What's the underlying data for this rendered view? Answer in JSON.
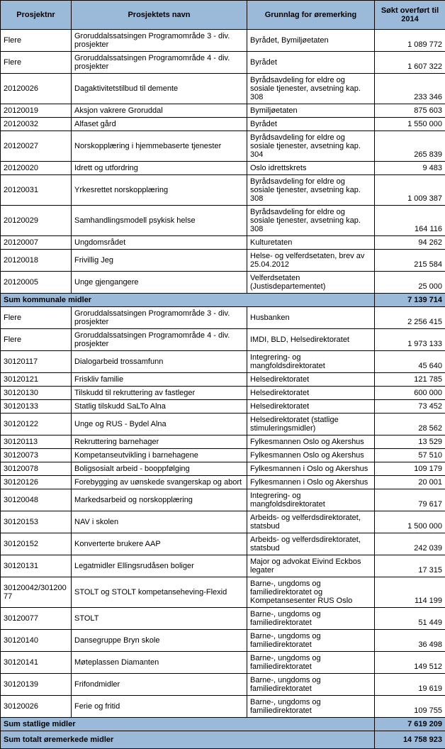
{
  "headers": {
    "col1": "Prosjektnr",
    "col2": "Prosjektets navn",
    "col3": "Grunnlag for øremerking",
    "col4": "Søkt overført til 2014"
  },
  "section1": {
    "rows": [
      {
        "nr": "Flere",
        "name": "Groruddalssatsingen Programområde 3 - div. prosjekter",
        "grunn": "Byrådet, Bymiljøetaten",
        "amt": "1 089 772"
      },
      {
        "nr": "Flere",
        "name": "Groruddalssatsingen Programområde 4 - div. prosjekter",
        "grunn": "Byrådet",
        "amt": "1 607 322"
      },
      {
        "nr": "20120026",
        "name": "Dagaktivitetstilbud til demente",
        "grunn": "Byrådsavdeling for eldre og sosiale tjenester, avsetning kap. 308",
        "amt": "233 346"
      },
      {
        "nr": "20120019",
        "name": "Aksjon vakrere Groruddal",
        "grunn": "Bymiljøetaten",
        "amt": "875 603"
      },
      {
        "nr": "20120032",
        "name": "Alfaset gård",
        "grunn": "Byrådet",
        "amt": "1 550 000"
      },
      {
        "nr": "20120027",
        "name": "Norskopplæring i hjemmebaserte tjenester",
        "grunn": "Byrådsavdeling for eldre og sosiale tjenester, avsetning kap. 304",
        "amt": "265 839"
      },
      {
        "nr": "20120020",
        "name": "Idrett og utfordring",
        "grunn": "Oslo idrettskrets",
        "amt": "9 483"
      },
      {
        "nr": "20120031",
        "name": "Yrkesrettet norskopplæring",
        "grunn": "Byrådsavdeling for eldre og sosiale tjenester, avsetning kap. 308",
        "amt": "1 009 387"
      },
      {
        "nr": "20120029",
        "name": "Samhandlingsmodell psykisk helse",
        "grunn": "Byrådsavdeling for eldre og sosiale tjenester, avsetning kap. 308",
        "amt": "164 116"
      },
      {
        "nr": "20120007",
        "name": "Ungdomsrådet",
        "grunn": "Kulturetaten",
        "amt": "94 262"
      },
      {
        "nr": "20120018",
        "name": "Frivillig Jeg",
        "grunn": "Helse- og velferdsetaten, brev av 25.04.2012",
        "amt": "215 584"
      },
      {
        "nr": "20120005",
        "name": "Unge gjengangere",
        "grunn": "Velferdsetaten (Justisdepartementet)",
        "amt": "25 000"
      }
    ],
    "sum_label": "Sum kommunale midler",
    "sum_amt": "7 139 714"
  },
  "section2": {
    "rows": [
      {
        "nr": "Flere",
        "name": "Groruddalssatsingen Programområde 3 - div. prosjekter",
        "grunn": "Husbanken",
        "amt": "2 256 415"
      },
      {
        "nr": "Flere",
        "name": "Groruddalssatsingen Programområde 4 - div. prosjekter",
        "grunn": "IMDI, BLD, Helsedirektoratet",
        "amt": "1 973 133"
      },
      {
        "nr": "30120117",
        "name": "Dialogarbeid trossamfunn",
        "grunn": "Integrering- og mangfoldsdirektoratet",
        "amt": "45 640"
      },
      {
        "nr": "30120121",
        "name": "Friskliv familie",
        "grunn": "Helsedirektoratet",
        "amt": "121 785"
      },
      {
        "nr": "30120130",
        "name": "Tilskudd til rekruttering av fastleger",
        "grunn": "Helsedirektoratet",
        "amt": "600 000"
      },
      {
        "nr": "30120133",
        "name": "Statlig tilskudd SaLTo Alna",
        "grunn": "Helsedirektoratet",
        "amt": "73 452"
      },
      {
        "nr": "30120122",
        "name": "Unge og RUS - Bydel Alna",
        "grunn": "Helsedirektoratet (statlige stimuleringsmidler)",
        "amt": "28 562"
      },
      {
        "nr": "30120113",
        "name": "Rekruttering barnehager",
        "grunn": "Fylkesmannen Oslo og Akershus",
        "amt": "13 529"
      },
      {
        "nr": "30120073",
        "name": "Kompetanseutvikling i barnehagene",
        "grunn": "Fylkesmannen Oslo og Akershus",
        "amt": "57 510"
      },
      {
        "nr": "30120078",
        "name": "Boligsosialt arbeid - booppfølging",
        "grunn": "Fylkesmannen i Oslo og Akershus",
        "amt": "109 179"
      },
      {
        "nr": "30120126",
        "name": "Forebygging av uønskede svangerskap og abort",
        "grunn": "Fylkesmannen i Oslo og Akershus",
        "amt": "20 001"
      },
      {
        "nr": "30120048",
        "name": "Markedsarbeid og norskopplæring",
        "grunn": "Integrering- og mangfoldsdirektoratet",
        "amt": "79 617"
      },
      {
        "nr": "30120153",
        "name": "NAV i skolen",
        "grunn": "Arbeids- og velferdsdirektoratet, statsbud",
        "amt": "1 500 000"
      },
      {
        "nr": "30120152",
        "name": "Konverterte brukere AAP",
        "grunn": "Arbeids- og velferdsdirektoratet, statsbud",
        "amt": "242 039"
      },
      {
        "nr": "30120131",
        "name": "Legatmidler Ellingsrudåsen boliger",
        "grunn": "Major og advokat Eivind Eckbos legater",
        "amt": "17 315"
      },
      {
        "nr": "30120042/30120077",
        "name": "STOLT og STOLT kompetanseheving-Flexid",
        "grunn": "Barne-, ungdoms og familiedirektoratet og Kompetansesenter RUS Oslo",
        "amt": "114 199"
      },
      {
        "nr": "30120077",
        "name": "STOLT",
        "grunn": "Barne-, ungdoms og familiedirektoratet",
        "amt": "51 449"
      },
      {
        "nr": "30120140",
        "name": "Dansegruppe Bryn skole",
        "grunn": "Barne-, ungdoms og familiedirektoratet",
        "amt": "36 498"
      },
      {
        "nr": "30120141",
        "name": "Møteplassen Diamanten",
        "grunn": "Barne-, ungdoms og familiedirektoratet",
        "amt": "149 512"
      },
      {
        "nr": "30120139",
        "name": "Frifondmidler",
        "grunn": "Barne-, ungdoms og familiedirektoratet",
        "amt": "19 619"
      },
      {
        "nr": "30120026",
        "name": "Ferie og fritid",
        "grunn": "Barne-, ungdoms og familiedirektoratet",
        "amt": "109 755"
      }
    ],
    "sum_label": "Sum statlige midler",
    "sum_amt": "7 619 209"
  },
  "total": {
    "label": "Sum totalt øremerkede midler",
    "amt": "14 758 923"
  }
}
